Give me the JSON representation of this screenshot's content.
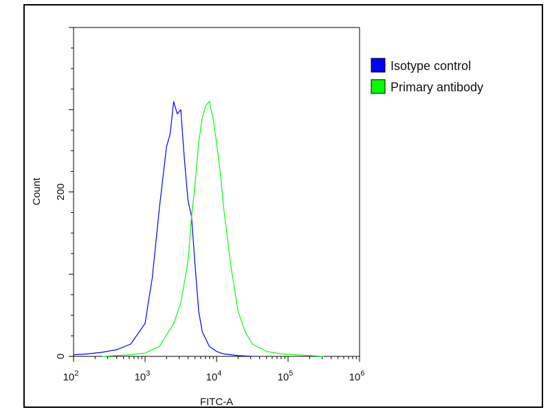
{
  "chart_data": {
    "type": "line",
    "title": "",
    "xlabel": "FITC-A",
    "ylabel": "Count",
    "x_scale": "log",
    "xlim": [
      100,
      1000000
    ],
    "ylim": [
      0,
      400
    ],
    "x_ticks": [
      {
        "value": 100,
        "base": "10",
        "exp": "2"
      },
      {
        "value": 1000,
        "base": "10",
        "exp": "3"
      },
      {
        "value": 10000,
        "base": "10",
        "exp": "4"
      },
      {
        "value": 100000,
        "base": "10",
        "exp": "5"
      },
      {
        "value": 1000000,
        "base": "10",
        "exp": "6"
      }
    ],
    "y_ticks": [
      {
        "value": 0,
        "label": "0"
      },
      {
        "value": 200,
        "label": "200"
      }
    ],
    "legend_position": "top-right",
    "grid": false,
    "series": [
      {
        "name": "Isotype control",
        "color": "#0000ff",
        "x": [
          100,
          158,
          251,
          398,
          631,
          1000,
          1259,
          1585,
          1995,
          2239,
          2512,
          2818,
          3162,
          3548,
          3981,
          4467,
          5012,
          5623,
          6310,
          7943,
          10000,
          12589,
          15849,
          19953,
          31623
        ],
        "y": [
          2,
          3,
          5,
          8,
          15,
          40,
          95,
          180,
          255,
          270,
          310,
          295,
          300,
          240,
          190,
          170,
          110,
          55,
          30,
          12,
          6,
          3,
          2,
          1,
          0
        ]
      },
      {
        "name": "Primary antibody",
        "color": "#00ff00",
        "x": [
          251,
          398,
          631,
          1000,
          1585,
          2512,
          3162,
          3981,
          4467,
          5012,
          5623,
          6310,
          7079,
          7943,
          8913,
          10000,
          11220,
          12589,
          15849,
          19953,
          25119,
          31623,
          50119,
          79433,
          125893,
          199526,
          316228
        ],
        "y": [
          0,
          1,
          2,
          4,
          12,
          40,
          65,
          115,
          170,
          210,
          260,
          290,
          305,
          310,
          290,
          260,
          225,
          180,
          110,
          55,
          30,
          15,
          6,
          3,
          2,
          1,
          0
        ]
      }
    ]
  }
}
